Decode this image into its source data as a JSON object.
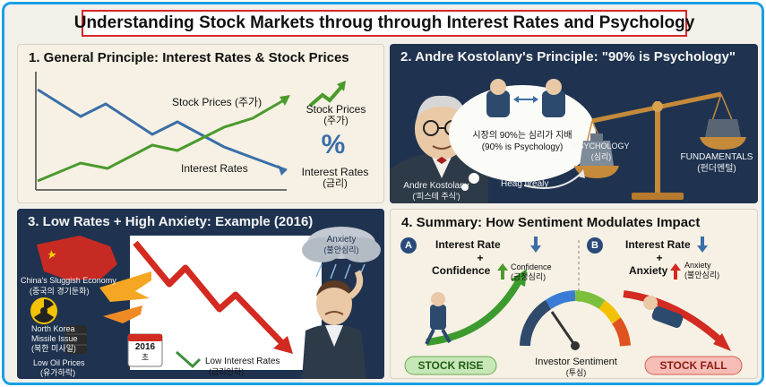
{
  "title": "Understanding Stock Markets throug through Interest Rates and Psychology",
  "panel1": {
    "heading": "1. General Principle: Interest Rates & Stock Prices",
    "stock_line_label": "Stock Prices (주가)",
    "rate_line_label": "Interest Rates",
    "stock_legend": "Stock Prices",
    "stock_legend_sub": "(주가)",
    "percent_symbol": "%",
    "rate_legend": "Interest Rates",
    "rate_legend_sub": "(금리)",
    "colors": {
      "stock": "#4a9a2c",
      "rate": "#3b6ea8"
    }
  },
  "panel2": {
    "heading": "2. Andre Kostolany's Principle: \"90% is Psychology\"",
    "bubble_line1": "시장의 90%는 심리가 지배",
    "bubble_line2": "(90% is Psychology)",
    "psychology_label": "PSYCHOLOGY",
    "psychology_sub": "(심리)",
    "fundamentals_label": "FUNDAMENTALS",
    "fundamentals_sub": "(펀더멘털)",
    "person_name": "Andre Kostolany",
    "person_sub": "('피스테 주식')",
    "arrow_caption": "Heag tirealy"
  },
  "panel3": {
    "heading": "3. Low Rates + High Anxiety: Example (2016)",
    "anxiety_label": "Anxiety",
    "anxiety_sub": "(불안심리)",
    "china_label": "China's Sluggish Economy",
    "china_sub": "(중국의 경기둔화)",
    "nk_label": "North Korea",
    "nk_label2": "Missile Issue",
    "nk_sub": "(북한 미사일)",
    "oil_label": "Low Oil Prices",
    "oil_sub": "(유가하락)",
    "calendar_year": "2016",
    "calendar_sub": "초",
    "low_rates_label": "Low Interest Rates",
    "low_rates_sub": "(금리인하)"
  },
  "panel4": {
    "heading": "4. Summary: How Sentiment Modulates Impact",
    "a_badge": "A",
    "a_rate": "Interest Rate",
    "a_plus": "+",
    "a_confidence": "Confidence",
    "a_confidence_tag": "Confidence",
    "a_confidence_sub": "(긍정심리)",
    "b_badge": "B",
    "b_rate": "Interest Rate",
    "b_plus": "+",
    "b_anxiety": "Anxiety",
    "b_anxiety_tag": "Anxiety",
    "b_anxiety_sub": "(불안심리)",
    "gauge_label": "Investor Sentiment",
    "gauge_sub": "(투심)",
    "stock_rise": "STOCK RISE",
    "stock_fall": "STOCK FALL"
  }
}
